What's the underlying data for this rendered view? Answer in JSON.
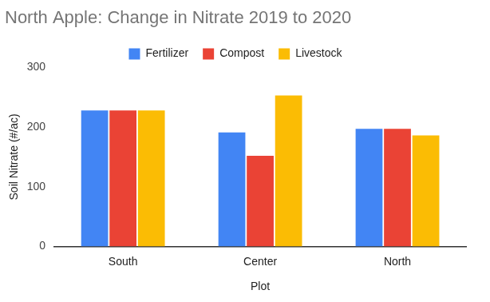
{
  "chart_data": {
    "type": "bar",
    "title": "North Apple: Change in Nitrate 2019 to 2020",
    "x_label": "Plot",
    "y_label": "Soil Nitrate (#/ac)",
    "categories": [
      "South",
      "Center",
      "North"
    ],
    "series": [
      {
        "name": "Fertilizer",
        "color": "#4285f4",
        "values": [
          228,
          191,
          197
        ]
      },
      {
        "name": "Compost",
        "color": "#ea4335",
        "values": [
          228,
          152,
          197
        ]
      },
      {
        "name": "Livestock",
        "color": "#fbbc04",
        "values": [
          228,
          253,
          186
        ]
      }
    ],
    "ylim": [
      0,
      300
    ],
    "yticks": [
      0,
      100,
      200,
      300
    ],
    "grid": false,
    "legend": "top"
  }
}
